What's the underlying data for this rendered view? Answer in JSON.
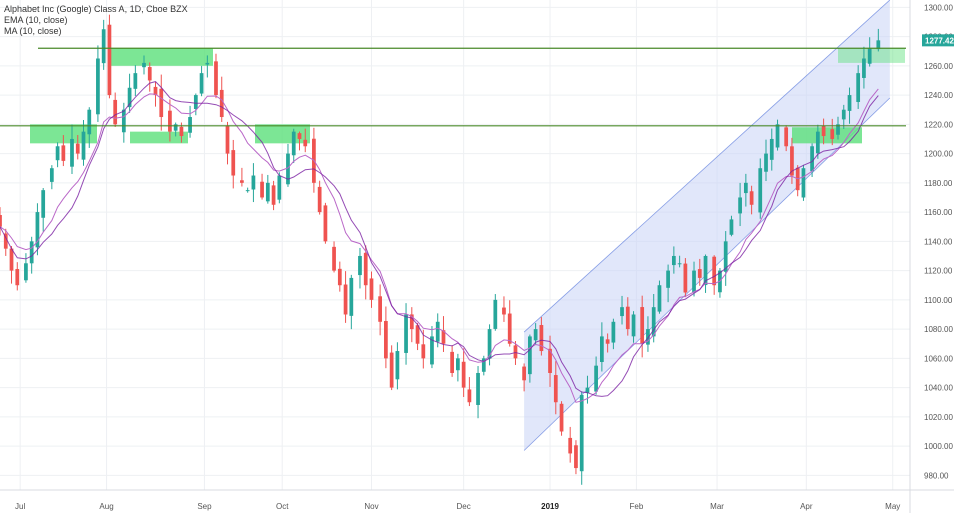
{
  "legend": {
    "title": "Alphabet Inc (Google) Class A, 1D, Cboe BZX",
    "ema": "EMA (10, close)",
    "ma": "MA (10, close)"
  },
  "colors": {
    "up": "#26a69a",
    "down": "#ef5350",
    "ema": "#ba68c8",
    "ma": "#7b1fa2",
    "support": "#4a8a2a",
    "zone": "#5be07a",
    "channel": "#3f64d6",
    "channel_fill": "#c9d4f5",
    "grid": "#eef0f3",
    "price_tag": "#26a69a"
  },
  "price_tag": "1277.42",
  "chart_data": {
    "type": "candlestick",
    "y_axis": {
      "min": 970,
      "max": 1305,
      "ticks": [
        "980.00",
        "1000.00",
        "1020.00",
        "1040.00",
        "1060.00",
        "1080.00",
        "1100.00",
        "1120.00",
        "1140.00",
        "1160.00",
        "1180.00",
        "1200.00",
        "1220.00",
        "1240.00",
        "1260.00",
        "1280.00",
        "1300.00"
      ]
    },
    "x_axis": {
      "labels": [
        {
          "text": "Jul",
          "date": "2018-07-02"
        },
        {
          "text": "Aug",
          "date": "2018-08-01"
        },
        {
          "text": "Sep",
          "date": "2018-09-04"
        },
        {
          "text": "Oct",
          "date": "2018-10-01"
        },
        {
          "text": "Nov",
          "date": "2018-11-01"
        },
        {
          "text": "Dec",
          "date": "2018-12-03"
        },
        {
          "text": "2019",
          "date": "2019-01-02"
        },
        {
          "text": "Feb",
          "date": "2019-02-01"
        },
        {
          "text": "Mar",
          "date": "2019-03-01"
        },
        {
          "text": "Apr",
          "date": "2019-04-01"
        },
        {
          "text": "May",
          "date": "2019-05-01"
        }
      ]
    },
    "closes": [
      1150,
      1135,
      1120,
      1110,
      1125,
      1140,
      1160,
      1175,
      1190,
      1205,
      1195,
      1210,
      1200,
      1215,
      1230,
      1265,
      1285,
      1240,
      1220,
      1230,
      1245,
      1255,
      1262,
      1250,
      1240,
      1225,
      1215,
      1220,
      1212,
      1225,
      1240,
      1255,
      1262,
      1240,
      1225,
      1200,
      1185,
      1180,
      1175,
      1185,
      1170,
      1180,
      1165,
      1185,
      1200,
      1215,
      1210,
      1205,
      1180,
      1160,
      1140,
      1120,
      1110,
      1090,
      1115,
      1130,
      1110,
      1100,
      1085,
      1060,
      1040,
      1065,
      1090,
      1080,
      1070,
      1060,
      1075,
      1085,
      1070,
      1050,
      1060,
      1040,
      1030,
      1050,
      1060,
      1080,
      1100,
      1090,
      1070,
      1060,
      1045,
      1075,
      1080,
      1065,
      1050,
      1030,
      1010,
      995,
      985,
      1035,
      1040,
      1055,
      1075,
      1070,
      1085,
      1095,
      1080,
      1090,
      1070,
      1080,
      1095,
      1110,
      1120,
      1130,
      1125,
      1105,
      1120,
      1115,
      1130,
      1110,
      1120,
      1140,
      1155,
      1170,
      1180,
      1165,
      1190,
      1200,
      1210,
      1220,
      1205,
      1185,
      1175,
      1190,
      1205,
      1215,
      1212,
      1210,
      1220,
      1230,
      1240,
      1255,
      1265,
      1272,
      1277.42
    ],
    "ema_period": 10,
    "ma_period": 10,
    "support_lines": [
      1272,
      1219
    ],
    "zones": [
      {
        "price_top": 1220,
        "price_bottom": 1207
      },
      {
        "price_top": 1272,
        "price_bottom": 1260
      },
      {
        "price_top": 1215,
        "price_bottom": 1207
      },
      {
        "price_top": 1220,
        "price_bottom": 1207
      },
      {
        "price_top": 1218,
        "price_bottom": 1207
      },
      {
        "price_top": 1272,
        "price_bottom": 1262
      }
    ],
    "channel": {
      "upper": [
        {
          "date": "2018-12-24",
          "price": 1078
        },
        {
          "date": "2019-04-30",
          "price": 1305
        }
      ],
      "lower": [
        {
          "date": "2018-12-24",
          "price": 997
        },
        {
          "date": "2019-04-30",
          "price": 1238
        }
      ]
    }
  }
}
